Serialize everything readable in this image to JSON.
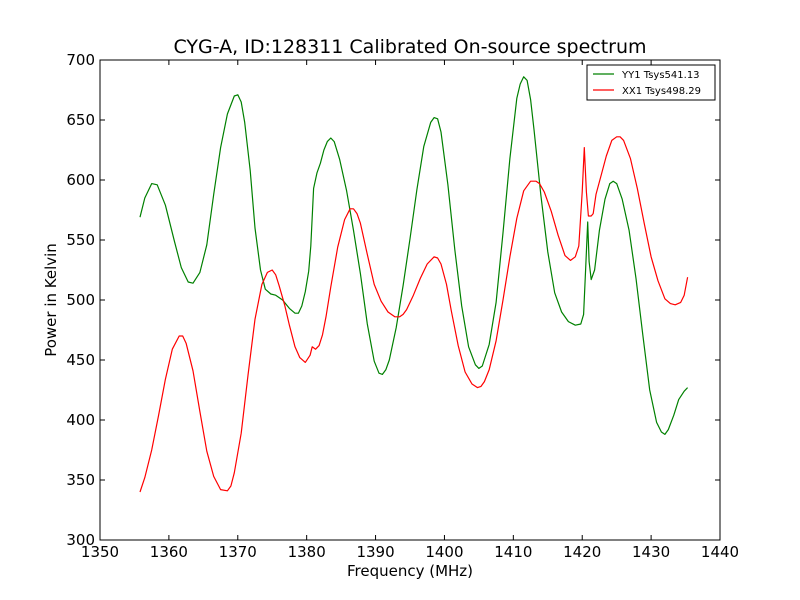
{
  "chart_data": {
    "type": "line",
    "title": "CYG-A, ID:128311 Calibrated On-source spectrum",
    "xlabel": "Frequency (MHz)",
    "ylabel": "Power in Kelvin",
    "xlim": [
      1350,
      1440
    ],
    "ylim": [
      300,
      700
    ],
    "xticks": [
      1350,
      1360,
      1370,
      1380,
      1390,
      1400,
      1410,
      1420,
      1430,
      1440
    ],
    "yticks": [
      300,
      350,
      400,
      450,
      500,
      550,
      600,
      650,
      700
    ],
    "grid": false,
    "legend_position": "top-right",
    "series": [
      {
        "name": "YY1 Tsys541.13",
        "color": "#008000",
        "x": [
          1355.8,
          1356.5,
          1357.5,
          1358.3,
          1359.5,
          1360.8,
          1361.8,
          1362.8,
          1363.5,
          1364.5,
          1365.5,
          1366.5,
          1367.5,
          1368.5,
          1369.5,
          1370.0,
          1370.5,
          1371.0,
          1371.8,
          1372.5,
          1373.3,
          1374.0,
          1374.8,
          1375.5,
          1376.5,
          1377.5,
          1378.3,
          1378.8,
          1379.3,
          1379.8,
          1380.3,
          1380.6,
          1381.0,
          1381.5,
          1382.0,
          1382.5,
          1383.0,
          1383.5,
          1384.0,
          1384.8,
          1385.8,
          1386.8,
          1387.8,
          1388.8,
          1389.8,
          1390.5,
          1391.0,
          1391.5,
          1392.0,
          1393.0,
          1394.0,
          1395.0,
          1396.0,
          1397.0,
          1398.0,
          1398.5,
          1399.0,
          1399.5,
          1400.5,
          1401.5,
          1402.5,
          1403.5,
          1404.5,
          1405.0,
          1405.5,
          1406.5,
          1407.5,
          1408.5,
          1409.5,
          1410.5,
          1411.0,
          1411.5,
          1412.0,
          1412.5,
          1413.0,
          1414.0,
          1415.0,
          1416.0,
          1417.0,
          1418.0,
          1419.0,
          1419.8,
          1420.2,
          1420.5,
          1420.8,
          1421.0,
          1421.3,
          1421.8,
          1422.5,
          1423.3,
          1424.0,
          1424.5,
          1425.0,
          1425.8,
          1426.8,
          1427.8,
          1428.8,
          1429.8,
          1430.8,
          1431.5,
          1432.0,
          1432.5,
          1433.3,
          1434.0,
          1434.8,
          1435.3
        ],
        "y": [
          569,
          585,
          597,
          596,
          579,
          549,
          527,
          515,
          514,
          523,
          546,
          588,
          627,
          655,
          670,
          671,
          665,
          648,
          608,
          560,
          525,
          509,
          505,
          504,
          500,
          493,
          489,
          489,
          495,
          507,
          524,
          545,
          593,
          606,
          614,
          625,
          632,
          635,
          632,
          617,
          591,
          558,
          522,
          480,
          449,
          439,
          438,
          442,
          450,
          477,
          512,
          551,
          592,
          628,
          648,
          652,
          651,
          640,
          596,
          542,
          495,
          461,
          446,
          443,
          445,
          463,
          498,
          556,
          618,
          668,
          680,
          686,
          683,
          667,
          642,
          587,
          540,
          506,
          490,
          482,
          479,
          480,
          488,
          527,
          565,
          532,
          517,
          525,
          558,
          584,
          597,
          599,
          597,
          584,
          558,
          518,
          471,
          425,
          398,
          390,
          388,
          392,
          404,
          417,
          424,
          427
        ]
      },
      {
        "name": "XX1 Tsys498.29",
        "color": "#ff0000",
        "x": [
          1355.8,
          1356.5,
          1357.5,
          1358.5,
          1359.5,
          1360.5,
          1361.5,
          1362.0,
          1362.5,
          1363.5,
          1364.5,
          1365.5,
          1366.5,
          1367.5,
          1368.5,
          1369.0,
          1369.5,
          1370.5,
          1371.5,
          1372.5,
          1373.5,
          1374.3,
          1375.0,
          1375.5,
          1376.0,
          1376.8,
          1377.5,
          1378.3,
          1379.0,
          1379.8,
          1380.5,
          1380.8,
          1381.3,
          1381.8,
          1382.3,
          1382.8,
          1383.5,
          1384.5,
          1385.5,
          1386.3,
          1386.8,
          1387.3,
          1387.8,
          1388.8,
          1389.8,
          1390.8,
          1391.8,
          1392.8,
          1393.5,
          1394.0,
          1394.5,
          1395.5,
          1396.5,
          1397.5,
          1398.5,
          1399.0,
          1399.5,
          1400.3,
          1401.0,
          1402.0,
          1403.0,
          1404.0,
          1404.8,
          1405.3,
          1405.8,
          1406.5,
          1407.5,
          1408.5,
          1409.5,
          1410.5,
          1411.5,
          1412.5,
          1413.3,
          1413.8,
          1414.5,
          1415.5,
          1416.5,
          1417.5,
          1418.3,
          1419.0,
          1419.5,
          1420.0,
          1420.3,
          1420.6,
          1420.9,
          1421.3,
          1421.6,
          1422.0,
          1422.8,
          1423.5,
          1424.3,
          1425.0,
          1425.5,
          1426.0,
          1427.0,
          1428.0,
          1429.0,
          1430.0,
          1431.0,
          1432.0,
          1432.8,
          1433.5,
          1434.3,
          1434.8,
          1435.3
        ],
        "y": [
          340,
          352,
          375,
          404,
          434,
          459,
          470,
          470,
          464,
          441,
          407,
          374,
          353,
          342,
          341,
          345,
          356,
          389,
          438,
          484,
          513,
          523,
          525,
          521,
          512,
          496,
          479,
          461,
          452,
          448,
          454,
          461,
          459,
          462,
          471,
          486,
          511,
          544,
          567,
          576,
          576,
          572,
          564,
          538,
          513,
          499,
          490,
          486,
          486,
          488,
          492,
          504,
          518,
          530,
          536,
          535,
          530,
          513,
          491,
          462,
          440,
          430,
          427,
          428,
          432,
          442,
          466,
          500,
          536,
          568,
          591,
          599,
          599,
          597,
          590,
          574,
          554,
          537,
          533,
          536,
          545,
          590,
          627,
          590,
          570,
          570,
          572,
          588,
          605,
          620,
          633,
          636,
          636,
          633,
          618,
          593,
          564,
          536,
          516,
          501,
          497,
          496,
          498,
          504,
          519
        ]
      }
    ]
  }
}
